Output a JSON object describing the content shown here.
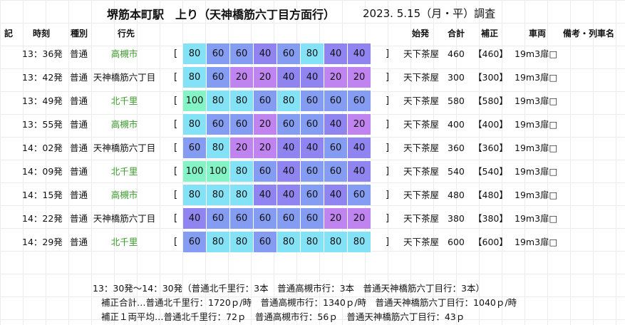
{
  "page": {
    "title": "堺筋本町駅　上り（天神橋筋六丁目方面行）",
    "survey_date": "2023. 5.15（月・平）調査"
  },
  "headers": {
    "ki": "記",
    "time": "時刻",
    "type": "種別",
    "dest": "行先",
    "origin": "始発",
    "total": "合計",
    "corrected": "補正",
    "vehicle": "車両",
    "remarks": "備考・列車名"
  },
  "colors": {
    "20": "#c084f0",
    "40": "#8f84f0",
    "60": "#849cf2",
    "80": "#84e2f6",
    "100": "#84f4c6",
    "destination_text": "#3a9a2a"
  },
  "trains": [
    {
      "time": "13：36発",
      "type": "普通",
      "dest": "高槻市",
      "dest_color": "green",
      "cars": [
        80,
        60,
        60,
        40,
        60,
        80,
        40,
        40
      ],
      "origin": "天下茶屋",
      "total": "460",
      "corrected": "【460】",
      "vehicle": "19m3扉□"
    },
    {
      "time": "13：42発",
      "type": "普通",
      "dest": "天神橋筋六丁目",
      "dest_color": "black",
      "cars": [
        80,
        60,
        20,
        20,
        40,
        40,
        20,
        20
      ],
      "origin": "天下茶屋",
      "total": "300",
      "corrected": "【300】",
      "vehicle": "19m3扉□"
    },
    {
      "time": "13：49発",
      "type": "普通",
      "dest": "北千里",
      "dest_color": "green",
      "cars": [
        100,
        80,
        80,
        60,
        80,
        60,
        60,
        60
      ],
      "origin": "天下茶屋",
      "total": "580",
      "corrected": "【580】",
      "vehicle": "19m3扉□"
    },
    {
      "time": "13：55発",
      "type": "普通",
      "dest": "高槻市",
      "dest_color": "green",
      "cars": [
        80,
        60,
        60,
        20,
        60,
        60,
        40,
        20
      ],
      "origin": "天下茶屋",
      "total": "400",
      "corrected": "【400】",
      "vehicle": "19m3扉□"
    },
    {
      "time": "14：02発",
      "type": "普通",
      "dest": "天神橋筋六丁目",
      "dest_color": "black",
      "cars": [
        60,
        80,
        20,
        20,
        40,
        40,
        60,
        40
      ],
      "origin": "天下茶屋",
      "total": "360",
      "corrected": "【360】",
      "vehicle": "19m3扉□"
    },
    {
      "time": "14：09発",
      "type": "普通",
      "dest": "北千里",
      "dest_color": "green",
      "cars": [
        100,
        100,
        80,
        60,
        40,
        60,
        60,
        40
      ],
      "origin": "天下茶屋",
      "total": "540",
      "corrected": "【540】",
      "vehicle": "19m3扉□"
    },
    {
      "time": "14：15発",
      "type": "普通",
      "dest": "高槻市",
      "dest_color": "green",
      "cars": [
        80,
        80,
        80,
        40,
        40,
        60,
        40,
        60
      ],
      "origin": "天下茶屋",
      "total": "480",
      "corrected": "【480】",
      "vehicle": "19m3扉□"
    },
    {
      "time": "14：22発",
      "type": "普通",
      "dest": "天神橋筋六丁目",
      "dest_color": "black",
      "cars": [
        40,
        60,
        60,
        60,
        60,
        60,
        20,
        20
      ],
      "origin": "天下茶屋",
      "total": "380",
      "corrected": "【380】",
      "vehicle": "19m3扉□"
    },
    {
      "time": "14：29発",
      "type": "普通",
      "dest": "北千里",
      "dest_color": "green",
      "cars": [
        60,
        80,
        80,
        60,
        80,
        80,
        80,
        80
      ],
      "origin": "天下茶屋",
      "total": "600",
      "corrected": "【600】",
      "vehicle": "19m3扉□"
    }
  ],
  "footer": {
    "line1": "13：30発～14：30発（普通北千里行：3本　普通高槻市行：3本　普通天神橋筋六丁目行：3本）",
    "line2": "補正合計…普通北千里行：1720ｐ/時　普通高槻市行：1340ｐ/時　普通天神橋筋六丁目行：1040ｐ/時",
    "line3": "補正１両平均…普通北千里行：72ｐ　普通高槻市行：56ｐ　普通天神橋筋六丁目行：43ｐ"
  }
}
